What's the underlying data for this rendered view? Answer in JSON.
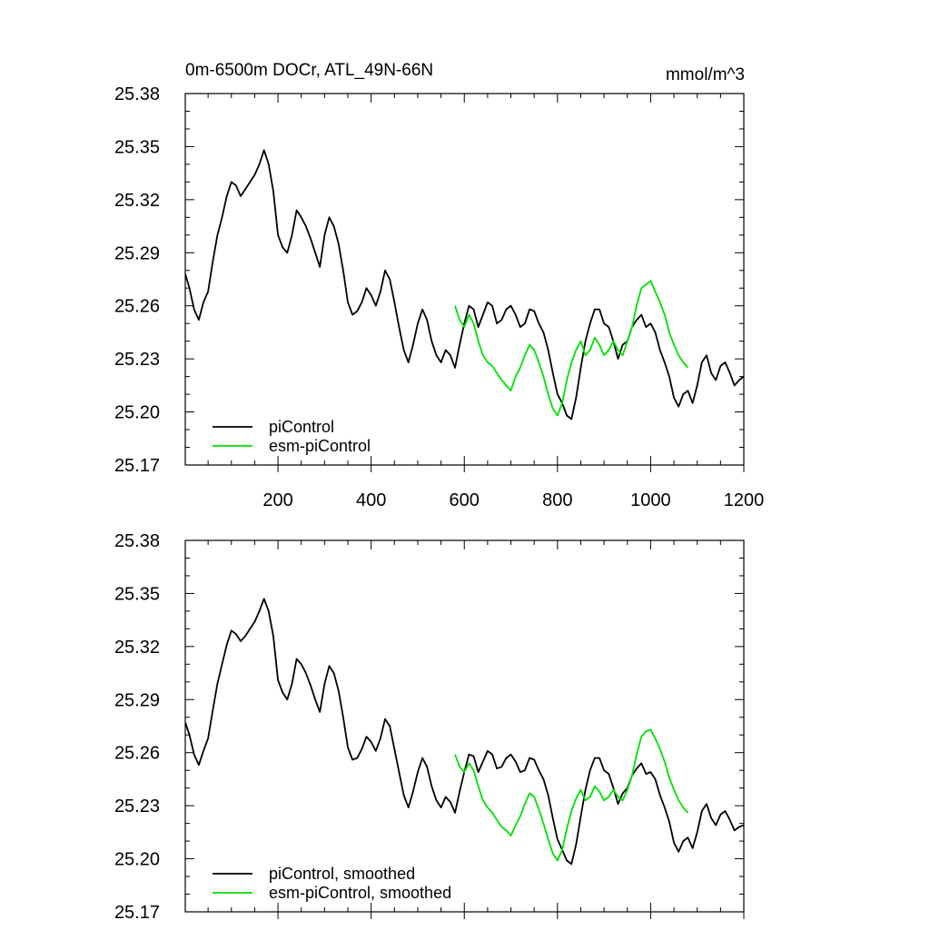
{
  "figure": {
    "title_left": "0m-6500m DOCr, ATL_49N-66N",
    "title_right": "mmol/m^3"
  },
  "colors": {
    "piControl": "#000000",
    "esm_piControl": "#00e000"
  },
  "chart_data": [
    {
      "type": "line",
      "title": "0m-6500m DOCr, ATL_49N-66N",
      "units": "mmol/m^3",
      "xlabel": "",
      "ylabel": "",
      "xlim": [
        1,
        1200
      ],
      "ylim": [
        25.17,
        25.38
      ],
      "x_ticks": [
        200,
        400,
        600,
        800,
        1000,
        1200
      ],
      "y_ticks": [
        25.17,
        25.2,
        25.23,
        25.26,
        25.29,
        25.32,
        25.35,
        25.38
      ],
      "y_tick_labels": [
        "25.17",
        "25.20",
        "25.23",
        "25.26",
        "25.29",
        "25.32",
        "25.35",
        "25.38"
      ],
      "show_x_tick_labels": true,
      "legend_position": "bottom-left",
      "series": [
        {
          "name": "piControl",
          "color": "#000000",
          "x": [
            1,
            10,
            20,
            30,
            40,
            50,
            60,
            70,
            80,
            90,
            100,
            110,
            120,
            130,
            140,
            150,
            160,
            170,
            180,
            190,
            200,
            210,
            220,
            230,
            240,
            250,
            260,
            270,
            280,
            290,
            300,
            310,
            320,
            330,
            340,
            350,
            360,
            370,
            380,
            390,
            400,
            410,
            420,
            430,
            440,
            450,
            460,
            470,
            480,
            490,
            500,
            510,
            520,
            530,
            540,
            550,
            560,
            570,
            580,
            590,
            600,
            610,
            620,
            630,
            640,
            650,
            660,
            670,
            680,
            690,
            700,
            710,
            720,
            730,
            740,
            750,
            760,
            770,
            780,
            790,
            800,
            810,
            820,
            830,
            840,
            850,
            860,
            870,
            880,
            890,
            900,
            910,
            920,
            930,
            940,
            950,
            960,
            970,
            980,
            990,
            1000,
            1010,
            1020,
            1030,
            1040,
            1050,
            1060,
            1070,
            1080,
            1090,
            1100,
            1110,
            1120,
            1130,
            1140,
            1150,
            1160,
            1170,
            1180,
            1190,
            1200
          ],
          "values": [
            25.278,
            25.27,
            25.258,
            25.252,
            25.262,
            25.268,
            25.285,
            25.3,
            25.31,
            25.322,
            25.33,
            25.328,
            25.322,
            25.326,
            25.33,
            25.334,
            25.34,
            25.348,
            25.34,
            25.325,
            25.3,
            25.293,
            25.29,
            25.3,
            25.314,
            25.31,
            25.305,
            25.298,
            25.29,
            25.282,
            25.3,
            25.31,
            25.305,
            25.295,
            25.28,
            25.262,
            25.255,
            25.257,
            25.262,
            25.27,
            25.266,
            25.26,
            25.268,
            25.28,
            25.275,
            25.262,
            25.248,
            25.235,
            25.228,
            25.238,
            25.25,
            25.258,
            25.252,
            25.24,
            25.232,
            25.228,
            25.235,
            25.232,
            25.225,
            25.238,
            25.25,
            25.26,
            25.258,
            25.248,
            25.255,
            25.262,
            25.26,
            25.25,
            25.252,
            25.258,
            25.26,
            25.255,
            25.248,
            25.25,
            25.258,
            25.257,
            25.25,
            25.245,
            25.235,
            25.222,
            25.21,
            25.205,
            25.198,
            25.196,
            25.208,
            25.225,
            25.24,
            25.25,
            25.258,
            25.258,
            25.25,
            25.248,
            25.24,
            25.23,
            25.238,
            25.24,
            25.248,
            25.252,
            25.255,
            25.248,
            25.25,
            25.245,
            25.235,
            25.228,
            25.22,
            25.208,
            25.203,
            25.21,
            25.212,
            25.205,
            25.215,
            25.228,
            25.232,
            25.222,
            25.218,
            25.226,
            25.228,
            25.222,
            25.215,
            25.218,
            25.22
          ]
        },
        {
          "name": "esm-piControl",
          "color": "#00e000",
          "x": [
            580,
            590,
            600,
            610,
            620,
            630,
            640,
            650,
            660,
            670,
            680,
            690,
            700,
            710,
            720,
            730,
            740,
            750,
            760,
            770,
            780,
            790,
            800,
            810,
            820,
            830,
            840,
            850,
            860,
            870,
            880,
            890,
            900,
            910,
            920,
            930,
            940,
            950,
            960,
            970,
            980,
            990,
            1000,
            1010,
            1020,
            1030,
            1040,
            1050,
            1060,
            1070,
            1080
          ],
          "values": [
            25.26,
            25.252,
            25.248,
            25.255,
            25.25,
            25.24,
            25.232,
            25.228,
            25.226,
            25.222,
            25.218,
            25.215,
            25.212,
            25.22,
            25.225,
            25.232,
            25.238,
            25.235,
            25.228,
            25.22,
            25.21,
            25.202,
            25.198,
            25.205,
            25.218,
            25.228,
            25.235,
            25.24,
            25.232,
            25.235,
            25.242,
            25.238,
            25.232,
            25.235,
            25.24,
            25.235,
            25.232,
            25.24,
            25.248,
            25.26,
            25.27,
            25.272,
            25.274,
            25.268,
            25.262,
            25.255,
            25.245,
            25.238,
            25.232,
            25.228,
            25.225
          ]
        }
      ]
    },
    {
      "type": "line",
      "title": "",
      "xlabel": "",
      "ylabel": "",
      "xlim": [
        1,
        1200
      ],
      "ylim": [
        25.17,
        25.38
      ],
      "x_ticks": [
        200,
        400,
        600,
        800,
        1000,
        1200
      ],
      "y_ticks": [
        25.17,
        25.2,
        25.23,
        25.26,
        25.29,
        25.32,
        25.35,
        25.38
      ],
      "y_tick_labels": [
        "25.17",
        "25.20",
        "25.23",
        "25.26",
        "25.29",
        "25.32",
        "25.35",
        "25.38"
      ],
      "show_x_tick_labels": false,
      "legend_position": "bottom-left",
      "series": [
        {
          "name": "piControl, smoothed",
          "color": "#000000",
          "x": [
            1,
            10,
            20,
            30,
            40,
            50,
            60,
            70,
            80,
            90,
            100,
            110,
            120,
            130,
            140,
            150,
            160,
            170,
            180,
            190,
            200,
            210,
            220,
            230,
            240,
            250,
            260,
            270,
            280,
            290,
            300,
            310,
            320,
            330,
            340,
            350,
            360,
            370,
            380,
            390,
            400,
            410,
            420,
            430,
            440,
            450,
            460,
            470,
            480,
            490,
            500,
            510,
            520,
            530,
            540,
            550,
            560,
            570,
            580,
            590,
            600,
            610,
            620,
            630,
            640,
            650,
            660,
            670,
            680,
            690,
            700,
            710,
            720,
            730,
            740,
            750,
            760,
            770,
            780,
            790,
            800,
            810,
            820,
            830,
            840,
            850,
            860,
            870,
            880,
            890,
            900,
            910,
            920,
            930,
            940,
            950,
            960,
            970,
            980,
            990,
            1000,
            1010,
            1020,
            1030,
            1040,
            1050,
            1060,
            1070,
            1080,
            1090,
            1100,
            1110,
            1120,
            1130,
            1140,
            1150,
            1160,
            1170,
            1180,
            1190,
            1200
          ],
          "values": [
            25.277,
            25.27,
            25.259,
            25.253,
            25.261,
            25.268,
            25.284,
            25.299,
            25.31,
            25.321,
            25.329,
            25.327,
            25.323,
            25.326,
            25.33,
            25.334,
            25.34,
            25.347,
            25.34,
            25.326,
            25.301,
            25.294,
            25.29,
            25.299,
            25.313,
            25.31,
            25.305,
            25.298,
            25.29,
            25.283,
            25.299,
            25.309,
            25.305,
            25.295,
            25.28,
            25.263,
            25.256,
            25.257,
            25.262,
            25.269,
            25.266,
            25.261,
            25.268,
            25.279,
            25.275,
            25.262,
            25.249,
            25.236,
            25.229,
            25.238,
            25.249,
            25.257,
            25.252,
            25.241,
            25.233,
            25.229,
            25.235,
            25.232,
            25.226,
            25.238,
            25.249,
            25.259,
            25.258,
            25.249,
            25.255,
            25.261,
            25.259,
            25.251,
            25.252,
            25.257,
            25.259,
            25.255,
            25.249,
            25.25,
            25.257,
            25.256,
            25.25,
            25.245,
            25.236,
            25.223,
            25.211,
            25.205,
            25.199,
            25.197,
            25.208,
            25.224,
            25.239,
            25.25,
            25.257,
            25.257,
            25.25,
            25.248,
            25.24,
            25.231,
            25.237,
            25.24,
            25.247,
            25.251,
            25.254,
            25.248,
            25.249,
            25.245,
            25.236,
            25.229,
            25.221,
            25.209,
            25.204,
            25.21,
            25.212,
            25.206,
            25.215,
            25.227,
            25.231,
            25.223,
            25.219,
            25.225,
            25.227,
            25.222,
            25.216,
            25.218,
            25.219
          ]
        },
        {
          "name": "esm-piControl, smoothed",
          "color": "#00e000",
          "x": [
            580,
            590,
            600,
            610,
            620,
            630,
            640,
            650,
            660,
            670,
            680,
            690,
            700,
            710,
            720,
            730,
            740,
            750,
            760,
            770,
            780,
            790,
            800,
            810,
            820,
            830,
            840,
            850,
            860,
            870,
            880,
            890,
            900,
            910,
            920,
            930,
            940,
            950,
            960,
            970,
            980,
            990,
            1000,
            1010,
            1020,
            1030,
            1040,
            1050,
            1060,
            1070,
            1080
          ],
          "values": [
            25.259,
            25.252,
            25.249,
            25.254,
            25.25,
            25.241,
            25.233,
            25.229,
            25.226,
            25.222,
            25.218,
            25.216,
            25.213,
            25.219,
            25.224,
            25.231,
            25.237,
            25.235,
            25.228,
            25.22,
            25.211,
            25.203,
            25.199,
            25.205,
            25.217,
            25.227,
            25.234,
            25.239,
            25.233,
            25.235,
            25.241,
            25.238,
            25.233,
            25.235,
            25.239,
            25.235,
            25.233,
            25.239,
            25.247,
            25.259,
            25.269,
            25.272,
            25.273,
            25.268,
            25.262,
            25.255,
            25.246,
            25.239,
            25.233,
            25.229,
            25.226
          ]
        }
      ]
    }
  ]
}
